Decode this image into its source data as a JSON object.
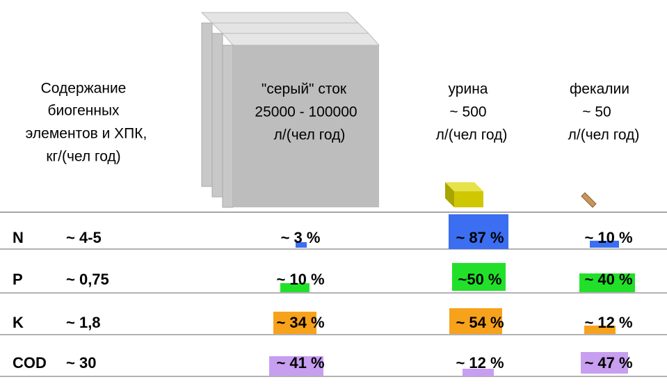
{
  "header_left": [
    "Содержание",
    "биогенных",
    "элементов и ХПК,",
    "кг/(чел год)"
  ],
  "columns": [
    {
      "lines": [
        "\"серый\" сток",
        "25000 - 100000",
        "л/(чел год)"
      ]
    },
    {
      "lines": [
        "урина",
        "~ 500",
        "л/(чел год)"
      ]
    },
    {
      "lines": [
        "фекалии",
        "~ 50",
        "л/(чел год)"
      ]
    }
  ],
  "rows": [
    {
      "element": "N",
      "amount": "~ 4-5",
      "cells": [
        "~ 3 %",
        "~ 87 %",
        "~ 10 %"
      ]
    },
    {
      "element": "P",
      "amount": "~ 0,75",
      "cells": [
        "~ 10 %",
        "~50 %",
        "~ 40 %"
      ]
    },
    {
      "element": "K",
      "amount": "~ 1,8",
      "cells": [
        "~ 34 %",
        "~ 54 %",
        "~ 12 %"
      ]
    },
    {
      "element": "COD",
      "amount": "~ 30",
      "cells": [
        "~ 41 %",
        "~ 12 %",
        "~ 47 %"
      ]
    }
  ]
}
